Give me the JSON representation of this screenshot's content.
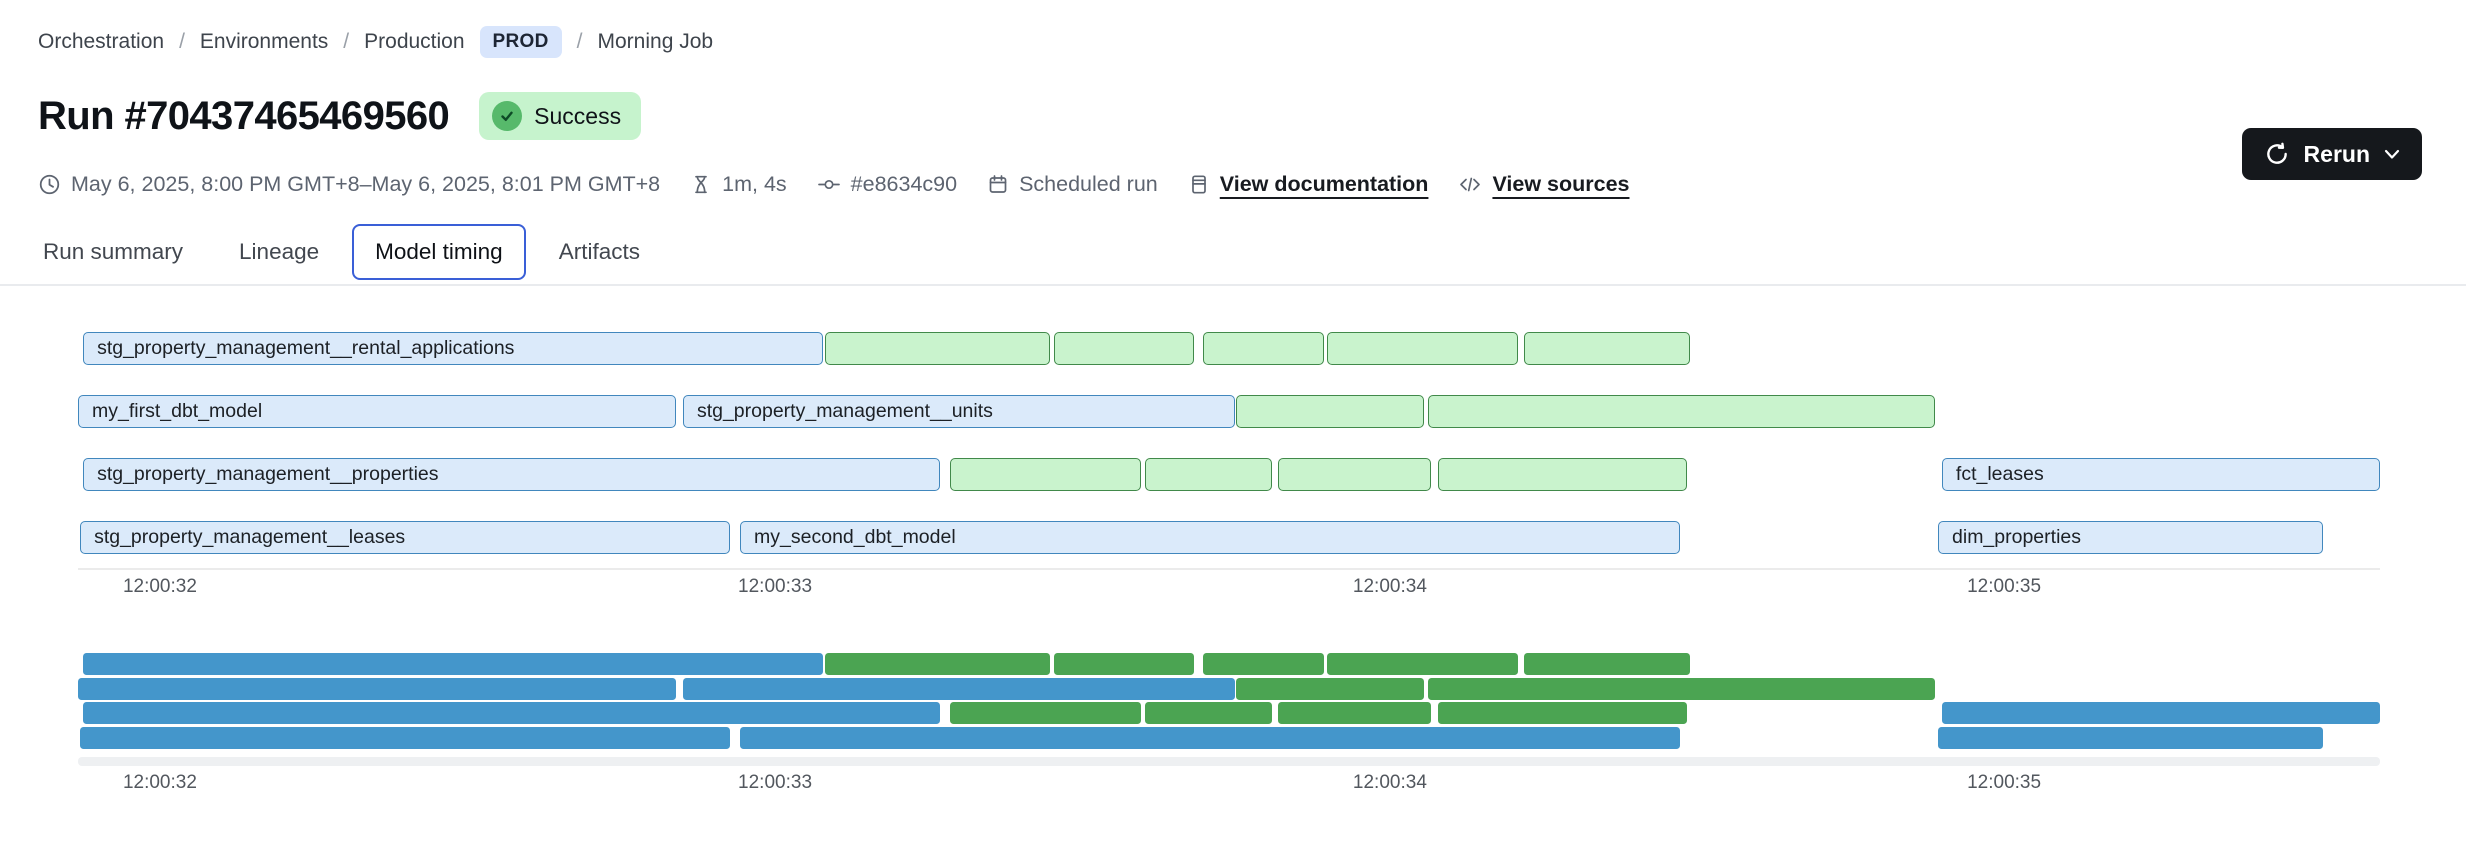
{
  "breadcrumb": {
    "separator": "/",
    "items": [
      "Orchestration",
      "Environments",
      "Production",
      "Morning Job"
    ],
    "env_badge": "PROD"
  },
  "header": {
    "title": "Run #70437465469560",
    "status": "Success"
  },
  "meta": {
    "time_range": "May 6, 2025, 8:00 PM GMT+8–May 6, 2025, 8:01 PM GMT+8",
    "duration": "1m, 4s",
    "commit": "#e8634c90",
    "trigger": "Scheduled run",
    "documentation_link": "View documentation",
    "sources_link": "View sources"
  },
  "actions": {
    "rerun_label": "Rerun"
  },
  "tabs": [
    {
      "label": "Run summary",
      "active": false
    },
    {
      "label": "Lineage",
      "active": false
    },
    {
      "label": "Model timing",
      "active": true
    },
    {
      "label": "Artifacts",
      "active": false
    }
  ],
  "chart_data": {
    "type": "gantt",
    "title": "Model timing",
    "x_axis": {
      "tick_labels": [
        "12:00:32",
        "12:00:33",
        "12:00:34",
        "12:00:35"
      ],
      "tick_pcts": [
        3.56,
        30.28,
        56.99,
        83.67
      ]
    },
    "colors": {
      "blue": {
        "fill": "#dbeafa",
        "border": "#4187bd",
        "solid": "#4496cb"
      },
      "green": {
        "fill": "#c9f3cd",
        "border": "#41894a",
        "solid": "#4ba452"
      }
    },
    "rows": [
      {
        "bars": [
          {
            "label": "stg_property_management__rental_applications",
            "kind": "blue",
            "start_pct": 0.22,
            "end_pct": 32.36,
            "start": "12:00:31.9",
            "end": "12:00:33.1"
          },
          {
            "label": "",
            "kind": "green",
            "start_pct": 32.45,
            "end_pct": 42.22,
            "start": "12:00:33.1",
            "end": "12:00:33.4"
          },
          {
            "label": "",
            "kind": "green",
            "start_pct": 42.4,
            "end_pct": 48.48,
            "start": "12:00:33.5",
            "end": "12:00:33.7"
          },
          {
            "label": "",
            "kind": "green",
            "start_pct": 48.87,
            "end_pct": 54.13,
            "start": "12:00:33.7",
            "end": "12:00:33.9"
          },
          {
            "label": "",
            "kind": "green",
            "start_pct": 54.26,
            "end_pct": 62.55,
            "start": "12:00:33.9",
            "end": "12:00:34.2"
          },
          {
            "label": "",
            "kind": "green",
            "start_pct": 62.81,
            "end_pct": 70.03,
            "start": "12:00:34.2",
            "end": "12:00:34.5"
          }
        ]
      },
      {
        "bars": [
          {
            "label": "my_first_dbt_model",
            "kind": "blue",
            "start_pct": 0.0,
            "end_pct": 25.98,
            "start": "12:00:31.9",
            "end": "12:00:32.8"
          },
          {
            "label": "stg_property_management__units",
            "kind": "blue",
            "start_pct": 26.28,
            "end_pct": 50.26,
            "start": "12:00:32.9",
            "end": "12:00:33.8"
          },
          {
            "label": "",
            "kind": "green",
            "start_pct": 50.3,
            "end_pct": 58.47,
            "start": "12:00:33.8",
            "end": "12:00:34.1"
          },
          {
            "label": "",
            "kind": "green",
            "start_pct": 58.64,
            "end_pct": 80.67,
            "start": "12:00:34.1",
            "end": "12:00:34.9"
          }
        ]
      },
      {
        "bars": [
          {
            "label": "stg_property_management__properties",
            "kind": "blue",
            "start_pct": 0.22,
            "end_pct": 37.45,
            "start": "12:00:31.9",
            "end": "12:00:33.3"
          },
          {
            "label": "",
            "kind": "green",
            "start_pct": 37.88,
            "end_pct": 46.18,
            "start": "12:00:33.3",
            "end": "12:00:33.6"
          },
          {
            "label": "",
            "kind": "green",
            "start_pct": 46.35,
            "end_pct": 51.87,
            "start": "12:00:33.6",
            "end": "12:00:33.8"
          },
          {
            "label": "",
            "kind": "green",
            "start_pct": 52.13,
            "end_pct": 58.78,
            "start": "12:00:33.8",
            "end": "12:00:34.1"
          },
          {
            "label": "",
            "kind": "green",
            "start_pct": 59.08,
            "end_pct": 69.9,
            "start": "12:00:34.1",
            "end": "12:00:34.5"
          },
          {
            "label": "fct_leases",
            "kind": "blue",
            "start_pct": 80.97,
            "end_pct": 100.0,
            "start": "12:00:34.9",
            "end": "12:00:35.6"
          }
        ]
      },
      {
        "bars": [
          {
            "label": "stg_property_management__leases",
            "kind": "blue",
            "start_pct": 0.09,
            "end_pct": 28.32,
            "start": "12:00:31.9",
            "end": "12:00:32.9"
          },
          {
            "label": "my_second_dbt_model",
            "kind": "blue",
            "start_pct": 28.76,
            "end_pct": 69.59,
            "start": "12:00:32.9",
            "end": "12:00:34.5"
          },
          {
            "label": "dim_properties",
            "kind": "blue",
            "start_pct": 80.8,
            "end_pct": 97.52,
            "start": "12:00:34.9",
            "end": "12:00:35.5"
          }
        ]
      }
    ]
  }
}
